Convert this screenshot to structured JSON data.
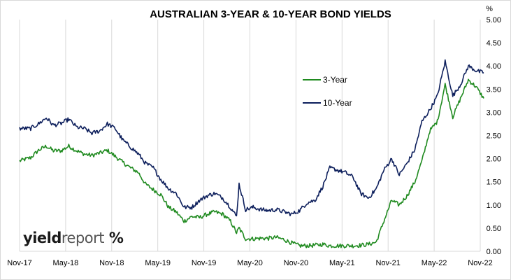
{
  "chart_data": {
    "type": "line",
    "title": "AUSTRALIAN 3-YEAR & 10-YEAR BOND YIELDS",
    "ylabel": "%",
    "ylim": [
      0,
      5
    ],
    "y_ticks": [
      "0.00",
      "0.50",
      "1.00",
      "1.50",
      "2.00",
      "2.50",
      "3.00",
      "3.50",
      "4.00",
      "4.50",
      "5.00"
    ],
    "x_ticks": [
      "Nov-17",
      "May-18",
      "Nov-18",
      "May-19",
      "Nov-19",
      "May-20",
      "Nov-20",
      "May-21",
      "Nov-21",
      "May-22",
      "Nov-22"
    ],
    "grid": "vertical",
    "legend_position": "center-right",
    "series": [
      {
        "name": "3-Year",
        "color": "#1f8a1f",
        "points": [
          [
            "2017-11-01",
            1.95
          ],
          [
            "2017-12-15",
            2.02
          ],
          [
            "2018-01-15",
            2.18
          ],
          [
            "2018-02-15",
            2.27
          ],
          [
            "2018-03-15",
            2.17
          ],
          [
            "2018-04-15",
            2.17
          ],
          [
            "2018-05-15",
            2.27
          ],
          [
            "2018-06-15",
            2.17
          ],
          [
            "2018-07-15",
            2.1
          ],
          [
            "2018-08-15",
            2.07
          ],
          [
            "2018-09-15",
            2.12
          ],
          [
            "2018-10-15",
            2.18
          ],
          [
            "2018-11-15",
            2.05
          ],
          [
            "2018-12-15",
            1.92
          ],
          [
            "2019-01-15",
            1.8
          ],
          [
            "2019-02-15",
            1.7
          ],
          [
            "2019-03-15",
            1.45
          ],
          [
            "2019-04-15",
            1.33
          ],
          [
            "2019-05-15",
            1.22
          ],
          [
            "2019-06-15",
            0.95
          ],
          [
            "2019-07-15",
            0.85
          ],
          [
            "2019-08-15",
            0.65
          ],
          [
            "2019-09-15",
            0.75
          ],
          [
            "2019-10-15",
            0.73
          ],
          [
            "2019-11-15",
            0.8
          ],
          [
            "2019-12-15",
            0.85
          ],
          [
            "2020-01-15",
            0.8
          ],
          [
            "2020-02-15",
            0.65
          ],
          [
            "2020-03-10",
            0.4
          ],
          [
            "2020-03-20",
            0.5
          ],
          [
            "2020-04-15",
            0.27
          ],
          [
            "2020-05-15",
            0.27
          ],
          [
            "2020-06-15",
            0.28
          ],
          [
            "2020-07-15",
            0.28
          ],
          [
            "2020-08-15",
            0.3
          ],
          [
            "2020-09-15",
            0.25
          ],
          [
            "2020-10-15",
            0.18
          ],
          [
            "2020-11-15",
            0.12
          ],
          [
            "2020-12-15",
            0.12
          ],
          [
            "2021-01-15",
            0.13
          ],
          [
            "2021-02-15",
            0.15
          ],
          [
            "2021-03-15",
            0.12
          ],
          [
            "2021-04-15",
            0.12
          ],
          [
            "2021-05-15",
            0.12
          ],
          [
            "2021-06-15",
            0.12
          ],
          [
            "2021-07-15",
            0.13
          ],
          [
            "2021-08-15",
            0.15
          ],
          [
            "2021-09-15",
            0.2
          ],
          [
            "2021-10-15",
            0.65
          ],
          [
            "2021-11-15",
            1.1
          ],
          [
            "2021-12-15",
            1.0
          ],
          [
            "2022-01-15",
            1.2
          ],
          [
            "2022-02-15",
            1.5
          ],
          [
            "2022-03-15",
            1.95
          ],
          [
            "2022-04-15",
            2.6
          ],
          [
            "2022-05-15",
            2.8
          ],
          [
            "2022-06-15",
            3.6
          ],
          [
            "2022-07-15",
            2.9
          ],
          [
            "2022-08-15",
            3.3
          ],
          [
            "2022-09-15",
            3.7
          ],
          [
            "2022-10-15",
            3.55
          ],
          [
            "2022-11-15",
            3.3
          ]
        ]
      },
      {
        "name": "10-Year",
        "color": "#0d1f5c",
        "points": [
          [
            "2017-11-01",
            2.65
          ],
          [
            "2017-12-15",
            2.65
          ],
          [
            "2018-01-15",
            2.75
          ],
          [
            "2018-02-15",
            2.88
          ],
          [
            "2018-03-15",
            2.72
          ],
          [
            "2018-04-15",
            2.76
          ],
          [
            "2018-05-15",
            2.85
          ],
          [
            "2018-06-15",
            2.68
          ],
          [
            "2018-07-15",
            2.65
          ],
          [
            "2018-08-15",
            2.55
          ],
          [
            "2018-09-15",
            2.6
          ],
          [
            "2018-10-15",
            2.75
          ],
          [
            "2018-11-15",
            2.65
          ],
          [
            "2018-12-15",
            2.4
          ],
          [
            "2019-01-15",
            2.25
          ],
          [
            "2019-02-15",
            2.1
          ],
          [
            "2019-03-15",
            1.9
          ],
          [
            "2019-04-15",
            1.8
          ],
          [
            "2019-05-15",
            1.55
          ],
          [
            "2019-06-15",
            1.35
          ],
          [
            "2019-07-15",
            1.25
          ],
          [
            "2019-08-15",
            0.95
          ],
          [
            "2019-09-15",
            0.95
          ],
          [
            "2019-10-15",
            1.1
          ],
          [
            "2019-11-15",
            1.2
          ],
          [
            "2019-12-15",
            1.25
          ],
          [
            "2020-01-15",
            1.15
          ],
          [
            "2020-02-15",
            0.95
          ],
          [
            "2020-03-10",
            0.75
          ],
          [
            "2020-03-20",
            1.45
          ],
          [
            "2020-04-15",
            0.9
          ],
          [
            "2020-05-15",
            0.95
          ],
          [
            "2020-06-15",
            0.9
          ],
          [
            "2020-07-15",
            0.88
          ],
          [
            "2020-08-15",
            0.9
          ],
          [
            "2020-09-15",
            0.85
          ],
          [
            "2020-10-15",
            0.8
          ],
          [
            "2020-11-15",
            0.88
          ],
          [
            "2020-12-15",
            1.05
          ],
          [
            "2021-01-15",
            1.1
          ],
          [
            "2021-02-15",
            1.4
          ],
          [
            "2021-03-15",
            1.8
          ],
          [
            "2021-04-15",
            1.75
          ],
          [
            "2021-05-15",
            1.7
          ],
          [
            "2021-06-15",
            1.6
          ],
          [
            "2021-07-15",
            1.25
          ],
          [
            "2021-08-15",
            1.15
          ],
          [
            "2021-09-15",
            1.35
          ],
          [
            "2021-10-15",
            1.75
          ],
          [
            "2021-11-15",
            2.0
          ],
          [
            "2021-12-15",
            1.65
          ],
          [
            "2022-01-15",
            1.9
          ],
          [
            "2022-02-15",
            2.2
          ],
          [
            "2022-03-15",
            2.8
          ],
          [
            "2022-04-15",
            3.05
          ],
          [
            "2022-05-15",
            3.35
          ],
          [
            "2022-06-15",
            4.1
          ],
          [
            "2022-07-15",
            3.35
          ],
          [
            "2022-08-15",
            3.6
          ],
          [
            "2022-09-15",
            4.0
          ],
          [
            "2022-10-15",
            3.9
          ],
          [
            "2022-11-15",
            3.85
          ]
        ]
      }
    ]
  },
  "logo": {
    "text_a": "yield",
    "text_b": "report",
    "symbol": "%"
  },
  "colors": {
    "grid": "#d9d9d9",
    "three_year": "#1f8a1f",
    "ten_year": "#0d1f5c"
  }
}
